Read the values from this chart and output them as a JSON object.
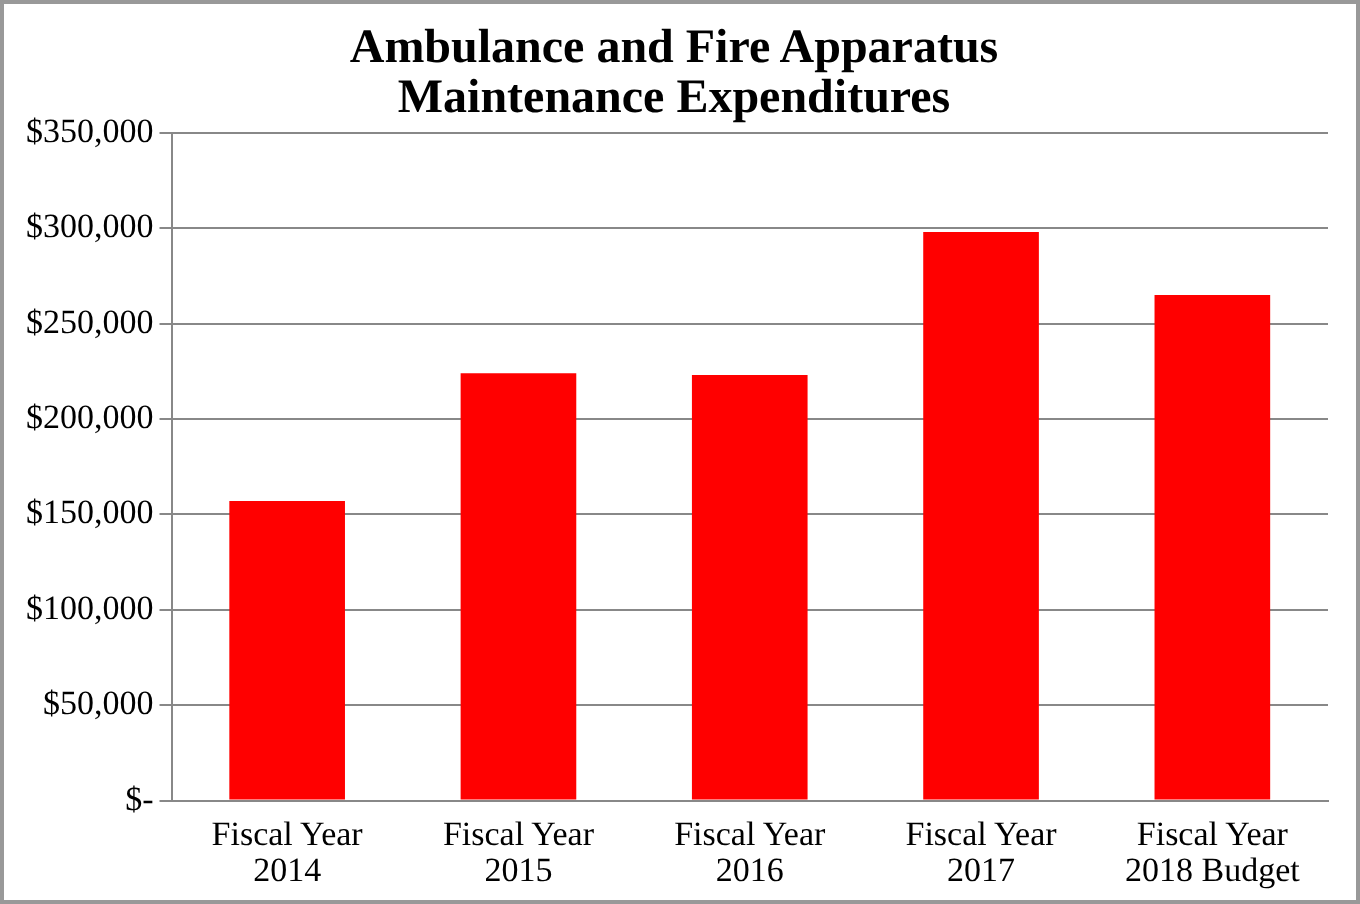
{
  "chart_data": {
    "type": "bar",
    "title": "Ambulance and Fire Apparatus\nMaintenance Expenditures",
    "categories": [
      "Fiscal Year\n2014",
      "Fiscal Year\n2015",
      "Fiscal Year\n2016",
      "Fiscal Year\n2017",
      "Fiscal Year\n2018 Budget"
    ],
    "values": [
      157000,
      224000,
      223000,
      298000,
      265000
    ],
    "color": "#ff0000",
    "ylim": [
      0,
      350000
    ],
    "yticks": [
      {
        "value": 0,
        "label": "$-"
      },
      {
        "value": 50000,
        "label": "$50,000"
      },
      {
        "value": 100000,
        "label": "$100,000"
      },
      {
        "value": 150000,
        "label": "$150,000"
      },
      {
        "value": 200000,
        "label": "$200,000"
      },
      {
        "value": 250000,
        "label": "$250,000"
      },
      {
        "value": 300000,
        "label": "$300,000"
      },
      {
        "value": 350000,
        "label": "$350,000"
      }
    ],
    "grid": "y",
    "legend": false
  }
}
